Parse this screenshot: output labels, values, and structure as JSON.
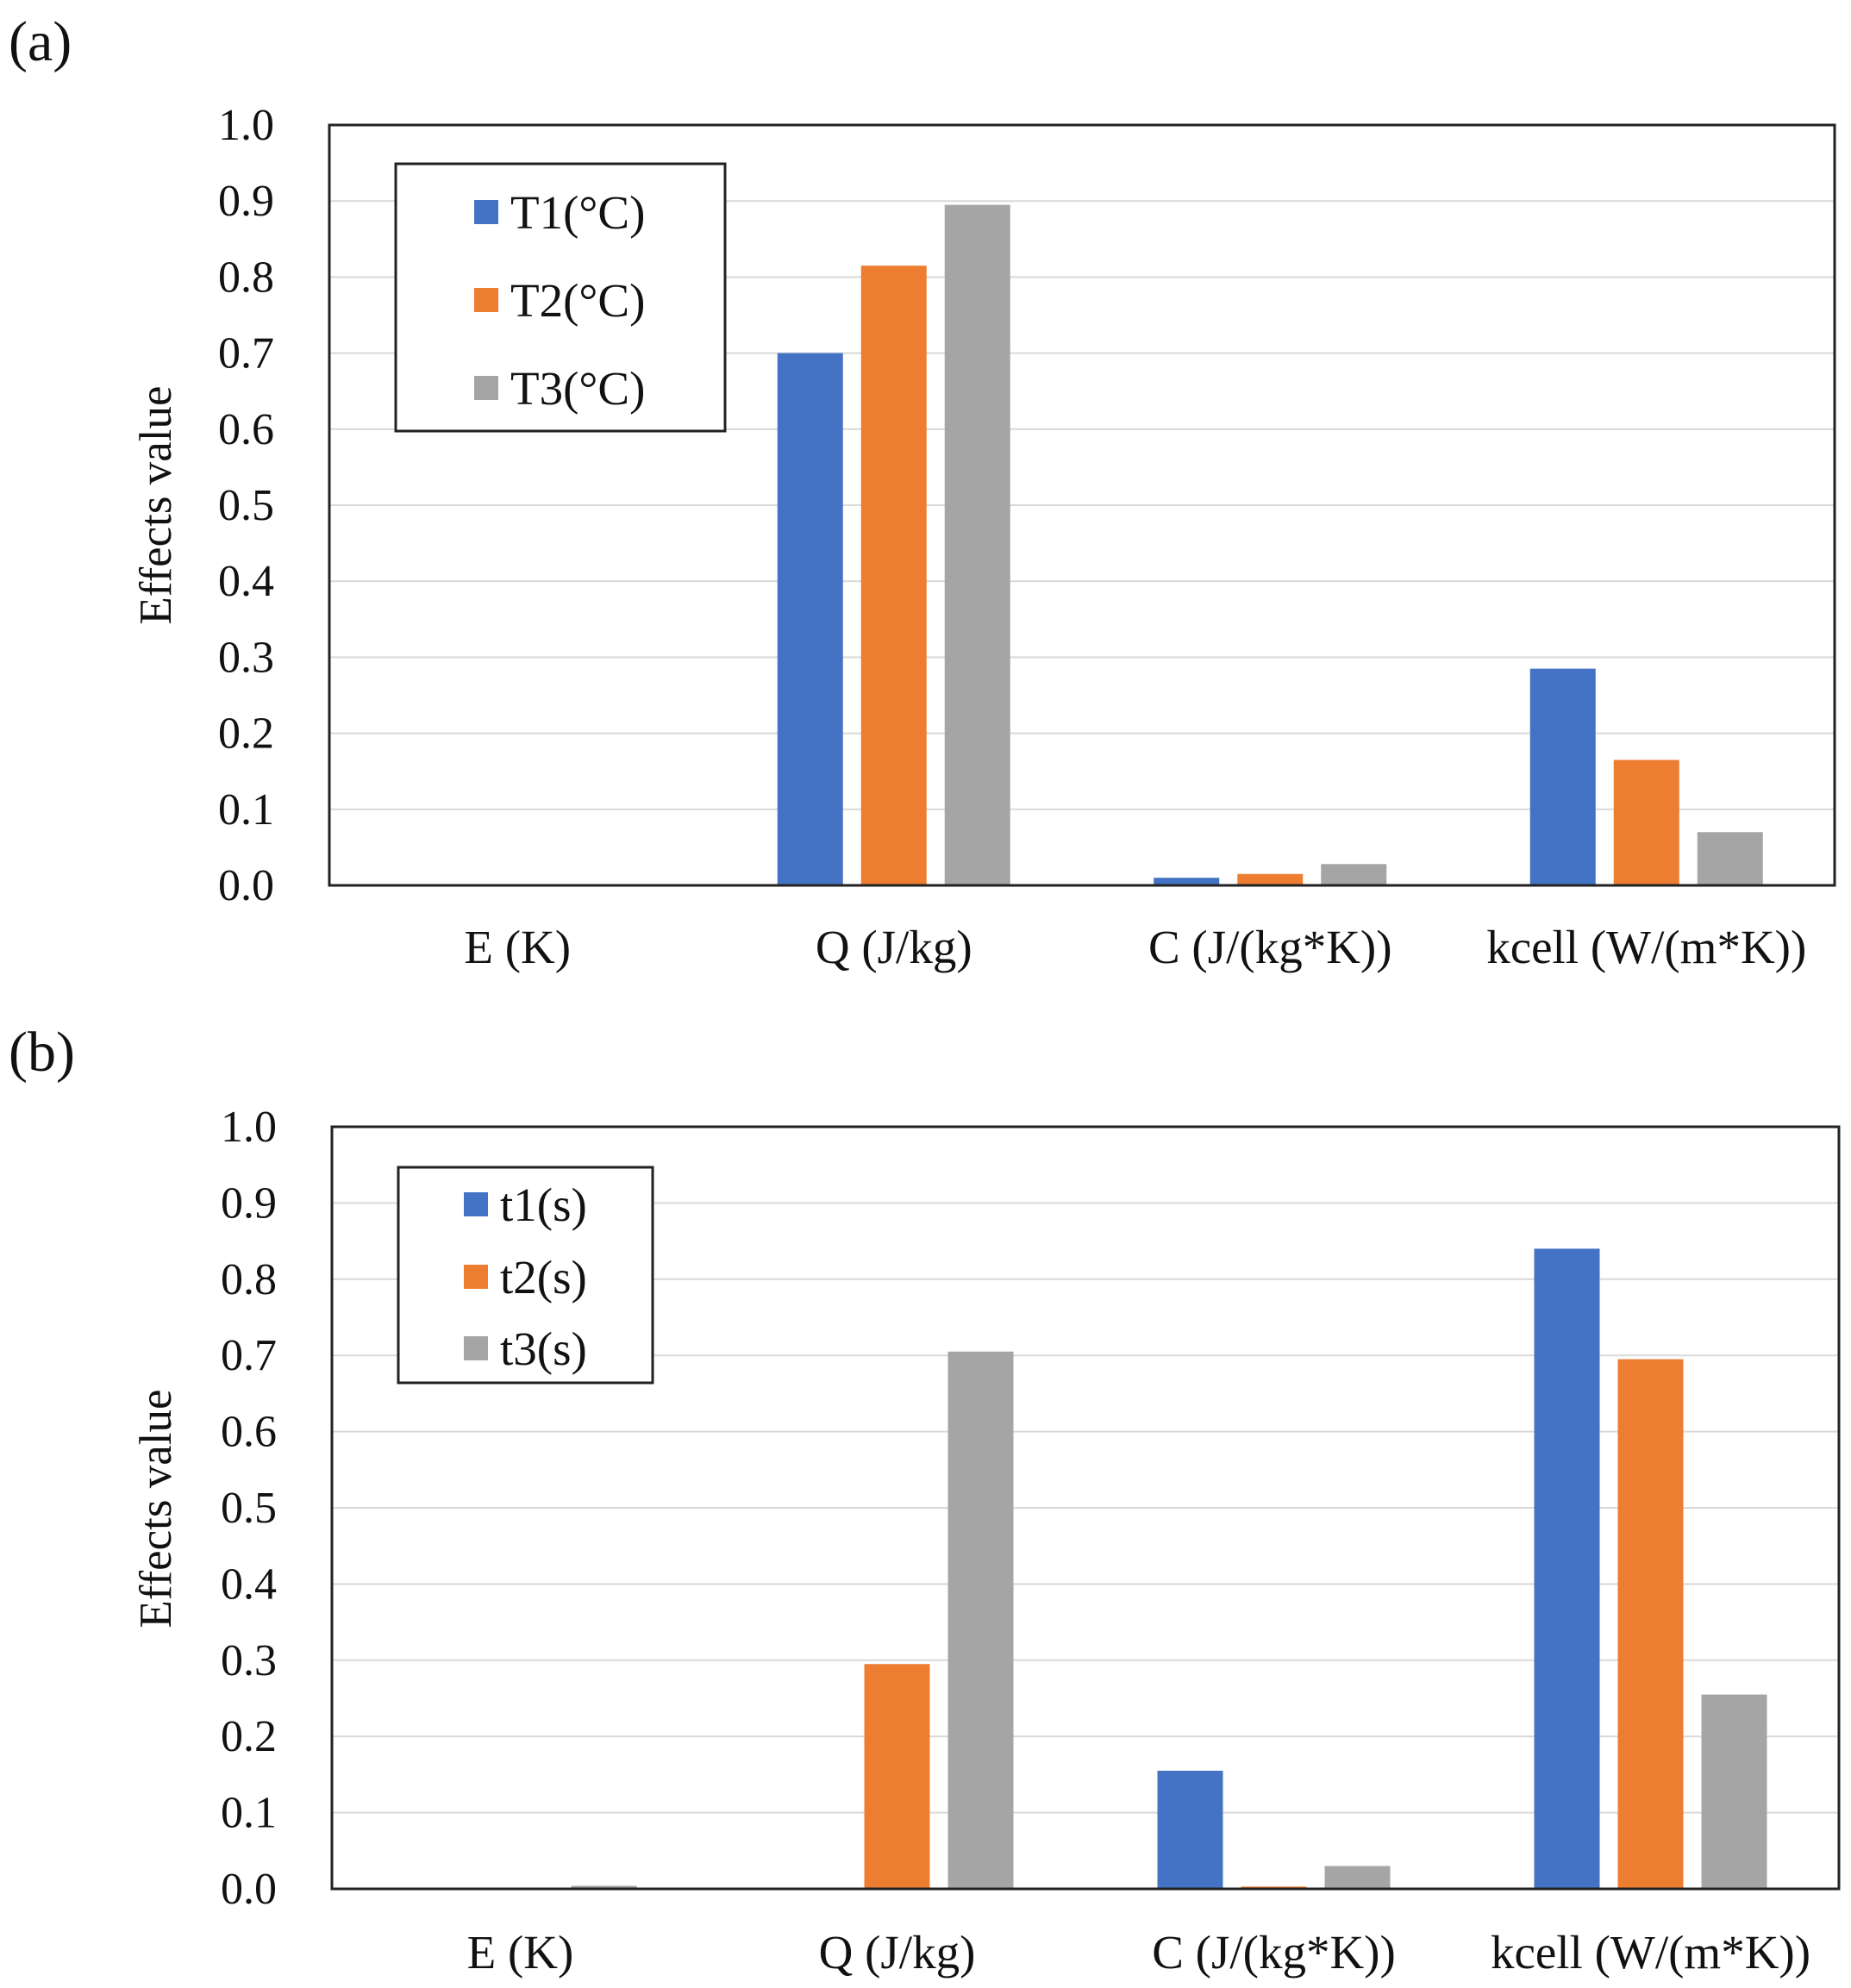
{
  "colors": {
    "series1": "#4472C4",
    "series2": "#ED7D31",
    "series3": "#A5A5A5",
    "grid": "#d9d9d9",
    "frame": "#222222"
  },
  "chart_data": [
    {
      "panel_label": "(a)",
      "type": "bar",
      "categories": [
        "E (K)",
        "Q (J/kg)",
        "C (J/(kg*K))",
        "kcell (W/(m*K))"
      ],
      "series": [
        {
          "name": "T1(°C)",
          "values": [
            0.0,
            0.7,
            0.01,
            0.285
          ]
        },
        {
          "name": "T2(°C)",
          "values": [
            0.0,
            0.815,
            0.015,
            0.165
          ]
        },
        {
          "name": "T3(°C)",
          "values": [
            0.0,
            0.895,
            0.028,
            0.07
          ]
        }
      ],
      "ylabel": "Effects value",
      "ylim": [
        0,
        1.0
      ],
      "yticks": [
        "0.0",
        "0.1",
        "0.2",
        "0.3",
        "0.4",
        "0.5",
        "0.6",
        "0.7",
        "0.8",
        "0.9",
        "1.0"
      ],
      "grid": true,
      "legend_position": "top-left"
    },
    {
      "panel_label": "(b)",
      "type": "bar",
      "categories": [
        "E (K)",
        "Q (J/kg)",
        "C (J/(kg*K))",
        "kcell (W/(m*K))"
      ],
      "series": [
        {
          "name": "t1(s)",
          "values": [
            0.0,
            0.0,
            0.155,
            0.84
          ]
        },
        {
          "name": "t2(s)",
          "values": [
            0.0,
            0.295,
            0.003,
            0.695
          ]
        },
        {
          "name": "t3(s)",
          "values": [
            0.004,
            0.705,
            0.03,
            0.255
          ]
        }
      ],
      "ylabel": "Effects value",
      "ylim": [
        0,
        1.0
      ],
      "yticks": [
        "0.0",
        "0.1",
        "0.2",
        "0.3",
        "0.4",
        "0.5",
        "0.6",
        "0.7",
        "0.8",
        "0.9",
        "1.0"
      ],
      "grid": true,
      "legend_position": "top-left"
    }
  ]
}
